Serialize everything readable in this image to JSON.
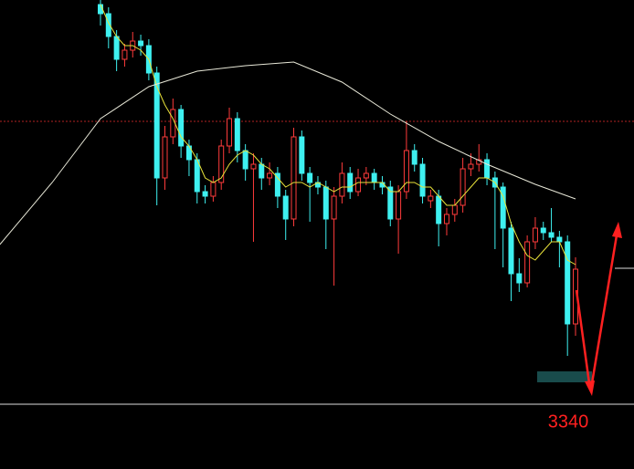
{
  "chart_data": {
    "type": "candlestick",
    "ylim": [
      3269,
      3783
    ],
    "up_color": "#ff3b3b",
    "down_color": "#3ef0f0",
    "candles": [
      [
        3778,
        3790,
        3755,
        3768
      ],
      [
        3768,
        3775,
        3730,
        3743
      ],
      [
        3743,
        3750,
        3705,
        3718
      ],
      [
        3718,
        3735,
        3710,
        3728
      ],
      [
        3728,
        3748,
        3720,
        3738
      ],
      [
        3738,
        3745,
        3722,
        3733
      ],
      [
        3733,
        3740,
        3695,
        3703
      ],
      [
        3703,
        3710,
        3558,
        3588
      ],
      [
        3588,
        3645,
        3575,
        3633
      ],
      [
        3633,
        3675,
        3625,
        3663
      ],
      [
        3663,
        3668,
        3610,
        3623
      ],
      [
        3623,
        3630,
        3590,
        3608
      ],
      [
        3608,
        3615,
        3560,
        3573
      ],
      [
        3573,
        3580,
        3560,
        3568
      ],
      [
        3568,
        3590,
        3562,
        3583
      ],
      [
        3583,
        3630,
        3575,
        3623
      ],
      [
        3623,
        3665,
        3615,
        3653
      ],
      [
        3653,
        3660,
        3605,
        3618
      ],
      [
        3618,
        3625,
        3585,
        3598
      ],
      [
        3598,
        3615,
        3518,
        3603
      ],
      [
        3603,
        3610,
        3575,
        3588
      ],
      [
        3588,
        3605,
        3580,
        3593
      ],
      [
        3593,
        3600,
        3555,
        3568
      ],
      [
        3568,
        3575,
        3520,
        3543
      ],
      [
        3543,
        3643,
        3535,
        3633
      ],
      [
        3633,
        3640,
        3585,
        3593
      ],
      [
        3593,
        3600,
        3540,
        3583
      ],
      [
        3583,
        3590,
        3570,
        3578
      ],
      [
        3578,
        3585,
        3510,
        3543
      ],
      [
        3543,
        3578,
        3470,
        3568
      ],
      [
        3568,
        3605,
        3560,
        3593
      ],
      [
        3593,
        3600,
        3565,
        3573
      ],
      [
        3573,
        3598,
        3568,
        3588
      ],
      [
        3588,
        3600,
        3580,
        3593
      ],
      [
        3593,
        3598,
        3575,
        3583
      ],
      [
        3583,
        3590,
        3570,
        3578
      ],
      [
        3578,
        3585,
        3535,
        3543
      ],
      [
        3543,
        3580,
        3505,
        3573
      ],
      [
        3573,
        3650,
        3565,
        3618
      ],
      [
        3618,
        3625,
        3595,
        3603
      ],
      [
        3603,
        3610,
        3560,
        3568
      ],
      [
        3563,
        3575,
        3555,
        3568
      ],
      [
        3568,
        3575,
        3513,
        3538
      ],
      [
        3538,
        3555,
        3525,
        3548
      ],
      [
        3548,
        3565,
        3540,
        3558
      ],
      [
        3558,
        3610,
        3550,
        3598
      ],
      [
        3598,
        3615,
        3590,
        3603
      ],
      [
        3603,
        3625,
        3595,
        3608
      ],
      [
        3608,
        3615,
        3580,
        3588
      ],
      [
        3588,
        3595,
        3510,
        3578
      ],
      [
        3578,
        3583,
        3490,
        3533
      ],
      [
        3533,
        3540,
        3453,
        3483
      ],
      [
        3483,
        3500,
        3463,
        3473
      ],
      [
        3473,
        3525,
        3468,
        3518
      ],
      [
        3518,
        3545,
        3510,
        3533
      ],
      [
        3533,
        3540,
        3520,
        3528
      ],
      [
        3528,
        3555,
        3518,
        3523
      ],
      [
        3523,
        3530,
        3490,
        3518
      ],
      [
        3518,
        3525,
        3393,
        3428
      ],
      [
        3428,
        3501,
        3415,
        3488
      ]
    ],
    "series": [
      {
        "color": "#e8e23a",
        "values": [
          3778,
          3758,
          3743,
          3733,
          3733,
          3728,
          3718,
          3688,
          3668,
          3653,
          3633,
          3623,
          3608,
          3588,
          3583,
          3588,
          3603,
          3613,
          3618,
          3613,
          3603,
          3598,
          3588,
          3578,
          3583,
          3583,
          3578,
          3583,
          3578,
          3573,
          3578,
          3578,
          3583,
          3583,
          3583,
          3583,
          3573,
          3573,
          3583,
          3583,
          3578,
          3578,
          3568,
          3558,
          3558,
          3568,
          3578,
          3588,
          3588,
          3583,
          3568,
          3538,
          3518,
          3503,
          3498,
          3508,
          3518,
          3518,
          3498,
          3493
        ]
      },
      {
        "color": "#e8e8d8",
        "x": [
          -12.5,
          -6,
          0,
          6,
          12,
          18,
          24,
          30,
          36,
          42,
          48,
          54,
          59
        ],
        "values": [
          3515,
          3583,
          3653,
          3688,
          3705,
          3711,
          3715,
          3693,
          3658,
          3628,
          3603,
          3581,
          3565
        ]
      }
    ],
    "hlines": [
      {
        "value": 3650,
        "color": "#b22222",
        "style": "dashed"
      },
      {
        "value": 3340,
        "color": "#dddddd",
        "style": "solid",
        "label": "3340"
      },
      {
        "value": 3489,
        "color": "#dddddd",
        "style": "marker"
      }
    ]
  }
}
